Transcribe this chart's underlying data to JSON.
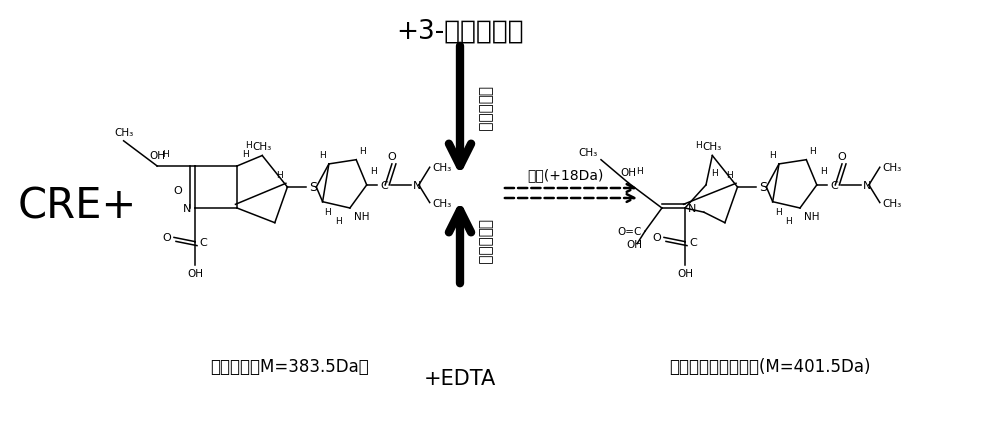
{
  "title_top": "+3-氨基苯垄酸",
  "label_bottom": "+EDTA",
  "label_cre": "CRE+",
  "label_meropenem": "美罗培南（M=383.5Da）",
  "label_hydrolysis_product": "美罗培南的水解产物(M=401.5Da)",
  "label_hydrolysis": "水解(+18Da)",
  "label_carbapenemase": "碳青霞烯酯",
  "bg_color": "#ffffff",
  "text_color": "#000000",
  "arrow_color": "#000000"
}
